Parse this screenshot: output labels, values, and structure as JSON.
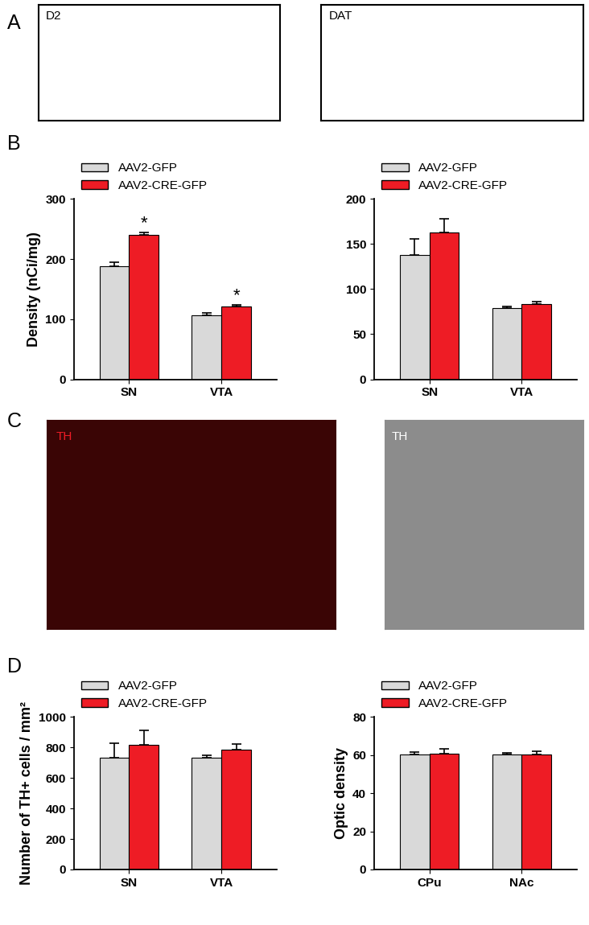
{
  "panel_labels": [
    "A",
    "B",
    "C",
    "D"
  ],
  "images": [
    {
      "panel": "A",
      "label": "D2"
    },
    {
      "panel": "A",
      "label": "DAT"
    },
    {
      "panel": "C",
      "label": "TH"
    },
    {
      "panel": "C",
      "label": "TH"
    }
  ],
  "chart_data": [
    {
      "type": "bar",
      "panel": "B",
      "y_label": "Density (nCi/mg)",
      "categories": [
        "SN",
        "VTA"
      ],
      "series": [
        {
          "name": "AAV2-GFP",
          "color": "#d9d9d9",
          "values": [
            188,
            106
          ],
          "errors": [
            7,
            4
          ]
        },
        {
          "name": "AAV2-CRE-GFP",
          "color": "#ee1c25",
          "values": [
            240,
            121
          ],
          "errors": [
            4,
            3
          ]
        }
      ],
      "annotations": [
        {
          "text": "*",
          "category": "SN",
          "series": "AAV2-CRE-GFP"
        },
        {
          "text": "*",
          "category": "VTA",
          "series": "AAV2-CRE-GFP"
        }
      ],
      "ylim": [
        0,
        300
      ],
      "yticks": [
        0,
        100,
        200,
        300
      ],
      "legend": "top",
      "grid": false
    },
    {
      "type": "bar",
      "panel": "B",
      "y_label": null,
      "categories": [
        "SN",
        "VTA"
      ],
      "series": [
        {
          "name": "AAV2-GFP",
          "color": "#d9d9d9",
          "values": [
            138,
            79
          ],
          "errors": [
            18,
            2
          ]
        },
        {
          "name": "AAV2-CRE-GFP",
          "color": "#ee1c25",
          "values": [
            163,
            83
          ],
          "errors": [
            15,
            3
          ]
        }
      ],
      "annotations": [],
      "ylim": [
        0,
        200
      ],
      "yticks": [
        0,
        50,
        100,
        150,
        200
      ],
      "legend": "top",
      "grid": false
    },
    {
      "type": "bar",
      "panel": "D",
      "y_label": "Number of TH+ cells / mm²",
      "categories": [
        "SN",
        "VTA"
      ],
      "series": [
        {
          "name": "AAV2-GFP",
          "color": "#d9d9d9",
          "values": [
            733,
            730
          ],
          "errors": [
            95,
            20
          ]
        },
        {
          "name": "AAV2-CRE-GFP",
          "color": "#ee1c25",
          "values": [
            817,
            787
          ],
          "errors": [
            95,
            35
          ]
        }
      ],
      "annotations": [],
      "ylim": [
        0,
        1000
      ],
      "yticks": [
        0,
        200,
        400,
        600,
        800,
        1000
      ],
      "legend": "top",
      "grid": false
    },
    {
      "type": "bar",
      "panel": "D",
      "y_label": "Optic density",
      "categories": [
        "CPu",
        "NAc"
      ],
      "series": [
        {
          "name": "AAV2-GFP",
          "color": "#d9d9d9",
          "values": [
            60.3,
            60.5
          ],
          "errors": [
            1.3,
            0.5
          ]
        },
        {
          "name": "AAV2-CRE-GFP",
          "color": "#ee1c25",
          "values": [
            60.7,
            60.5
          ],
          "errors": [
            2.5,
            1.5
          ]
        }
      ],
      "annotations": [],
      "ylim": [
        0,
        80
      ],
      "yticks": [
        0,
        20,
        40,
        60,
        80
      ],
      "legend": "top",
      "grid": false
    }
  ]
}
